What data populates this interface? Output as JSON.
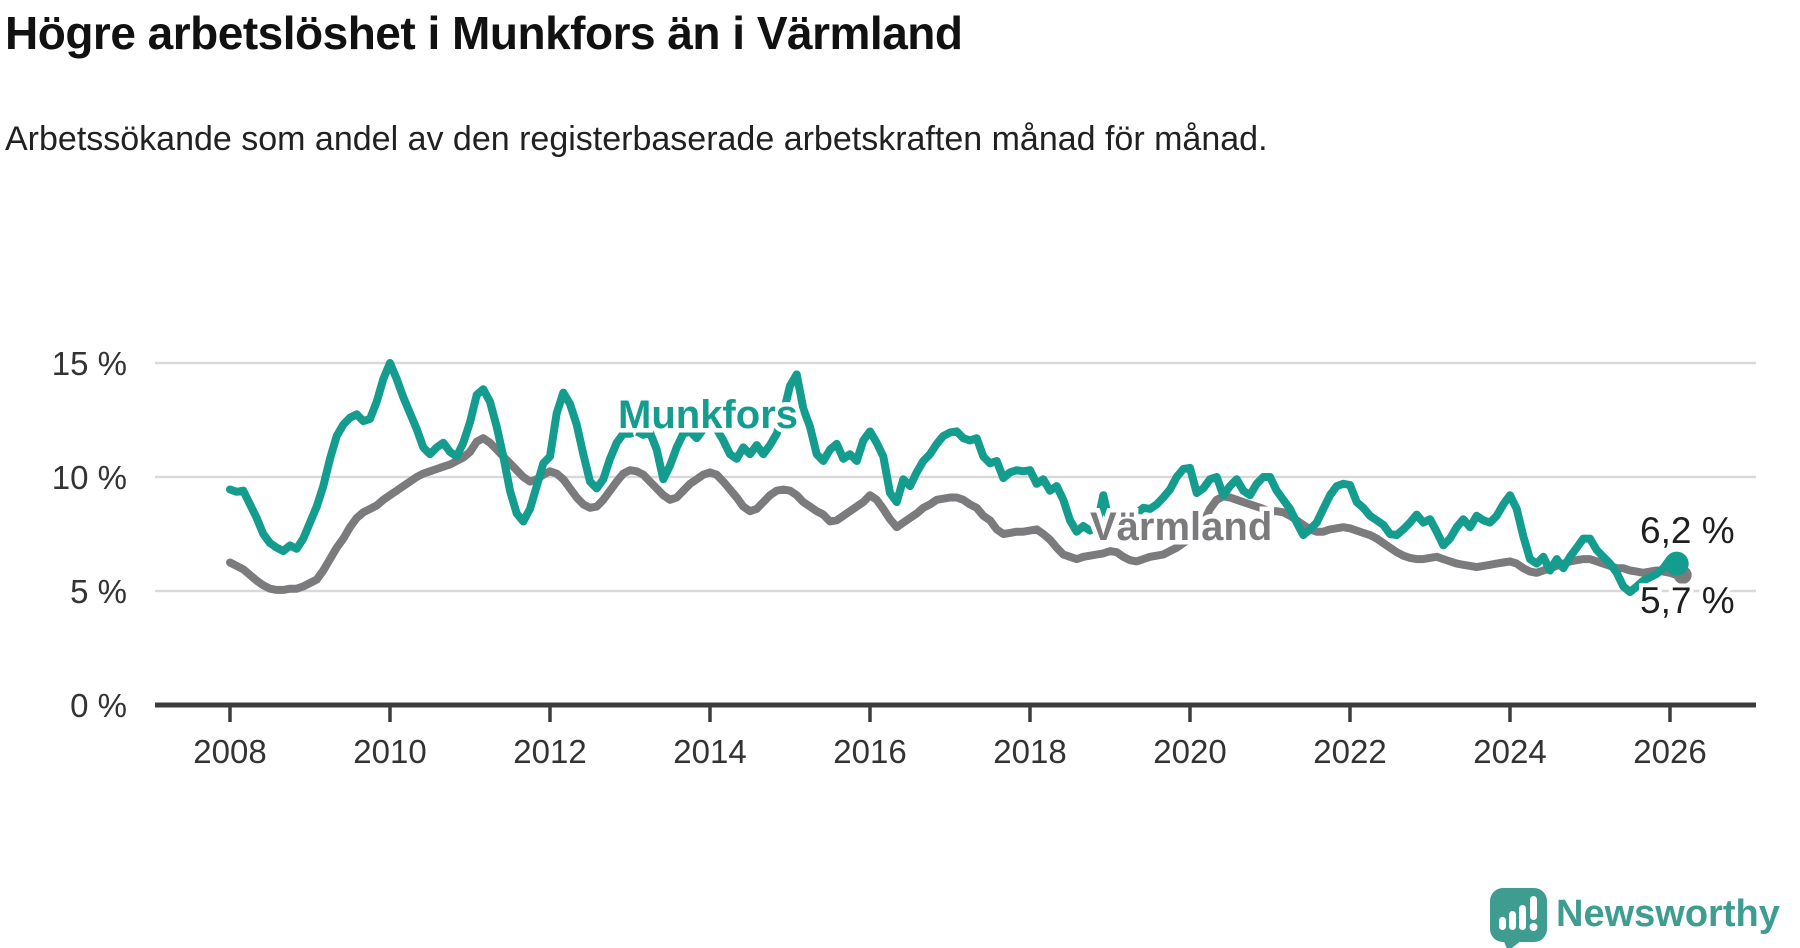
{
  "header": {
    "title": "Högre arbetslöshet i Munkfors än i Värmland",
    "subtitle": "Arbetssökande som andel av den registerbaserade arbetskraften månad för månad."
  },
  "chart_data": {
    "type": "line",
    "title": "Högre arbetslöshet i Munkfors än i Värmland",
    "subtitle": "Arbetssökande som andel av den registerbaserade arbetskraften månad för månad.",
    "unit": "%",
    "frequency": "monthly",
    "x_start": "2008-01",
    "x_end": "2026-02",
    "ylim": [
      0,
      17
    ],
    "grid": "horizontal",
    "x_ticks": [
      "2008",
      "2010",
      "2012",
      "2014",
      "2016",
      "2018",
      "2020",
      "2022",
      "2024",
      "2026"
    ],
    "y_ticks": [
      "15 %",
      "10 %",
      "5 %",
      "0 %"
    ],
    "colors": {
      "munkfors": "#149c8e",
      "varmland": "#7b7b7e",
      "gridline": "#d9d9d9",
      "axis": "#3c3c3c",
      "text": "#333333",
      "brand": "#3e9c91"
    },
    "series": [
      {
        "name": "Munkfors",
        "color": "#149c8e",
        "end_label": "6,2 %",
        "end_value": 6.2,
        "values": [
          9.45,
          9.35,
          9.4,
          8.8,
          8.2,
          7.5,
          7.1,
          6.9,
          6.75,
          7.0,
          6.85,
          7.3,
          8.0,
          8.7,
          9.6,
          10.8,
          11.8,
          12.3,
          12.6,
          12.75,
          12.45,
          12.55,
          13.3,
          14.3,
          15.0,
          14.3,
          13.5,
          12.8,
          12.1,
          11.3,
          11.0,
          11.3,
          11.5,
          11.1,
          10.9,
          11.5,
          12.4,
          13.6,
          13.85,
          13.3,
          12.2,
          10.9,
          9.4,
          8.4,
          8.05,
          8.6,
          9.6,
          10.6,
          10.9,
          12.8,
          13.7,
          13.2,
          12.3,
          11.0,
          9.8,
          9.5,
          9.9,
          10.8,
          11.5,
          11.9,
          11.9,
          12.0,
          11.85,
          11.95,
          11.2,
          9.9,
          10.5,
          11.3,
          11.9,
          12.0,
          11.7,
          12.1,
          12.3,
          12.1,
          11.6,
          11.0,
          10.8,
          11.3,
          11.0,
          11.4,
          11.0,
          11.4,
          11.9,
          12.8,
          14.0,
          14.5,
          13.0,
          12.2,
          11.0,
          10.7,
          11.2,
          11.45,
          10.8,
          11.0,
          10.7,
          11.6,
          12.0,
          11.5,
          10.9,
          9.3,
          8.9,
          9.9,
          9.6,
          10.2,
          10.7,
          11.0,
          11.45,
          11.8,
          11.95,
          12.0,
          11.7,
          11.6,
          11.7,
          10.9,
          10.6,
          10.7,
          9.95,
          10.2,
          10.3,
          10.25,
          10.3,
          9.7,
          9.9,
          9.4,
          9.6,
          9.0,
          8.1,
          7.6,
          7.85,
          7.65,
          7.8,
          9.2,
          7.9,
          8.0,
          8.1,
          8.2,
          8.4,
          8.65,
          8.6,
          8.8,
          9.1,
          9.45,
          10.0,
          10.35,
          10.4,
          9.3,
          9.5,
          9.9,
          10.0,
          9.2,
          9.6,
          9.9,
          9.4,
          9.2,
          9.7,
          10.0,
          10.0,
          9.4,
          9.0,
          8.6,
          8.0,
          7.45,
          7.7,
          8.0,
          8.6,
          9.2,
          9.6,
          9.7,
          9.65,
          8.9,
          8.65,
          8.3,
          8.1,
          7.9,
          7.5,
          7.45,
          7.7,
          8.0,
          8.35,
          8.0,
          8.15,
          7.6,
          7.0,
          7.3,
          7.8,
          8.15,
          7.8,
          8.3,
          8.1,
          8.0,
          8.3,
          8.8,
          9.2,
          8.6,
          7.4,
          6.4,
          6.2,
          6.5,
          5.9,
          6.4,
          6.0,
          6.5,
          6.9,
          7.3,
          7.3,
          6.8,
          6.5,
          6.2,
          5.8,
          5.2,
          4.95,
          5.2,
          5.45,
          5.6,
          5.75,
          6.0,
          6.4,
          6.2
        ]
      },
      {
        "name": "Värmland",
        "color": "#7b7b7e",
        "end_label": "5,7 %",
        "end_value": 5.7,
        "values": [
          6.25,
          6.1,
          5.95,
          5.7,
          5.45,
          5.25,
          5.1,
          5.05,
          5.05,
          5.1,
          5.1,
          5.2,
          5.35,
          5.5,
          5.9,
          6.4,
          6.9,
          7.3,
          7.8,
          8.2,
          8.45,
          8.6,
          8.75,
          9.0,
          9.2,
          9.4,
          9.6,
          9.8,
          10.0,
          10.15,
          10.25,
          10.35,
          10.45,
          10.55,
          10.7,
          10.85,
          11.1,
          11.55,
          11.7,
          11.5,
          11.2,
          10.9,
          10.6,
          10.3,
          10.0,
          9.8,
          9.9,
          10.1,
          10.25,
          10.15,
          9.9,
          9.5,
          9.1,
          8.8,
          8.65,
          8.7,
          9.0,
          9.4,
          9.8,
          10.15,
          10.3,
          10.25,
          10.1,
          9.8,
          9.5,
          9.2,
          9.0,
          9.1,
          9.4,
          9.7,
          9.9,
          10.1,
          10.2,
          10.1,
          9.8,
          9.45,
          9.1,
          8.7,
          8.5,
          8.6,
          8.9,
          9.2,
          9.4,
          9.45,
          9.4,
          9.2,
          8.9,
          8.7,
          8.5,
          8.35,
          8.05,
          8.1,
          8.3,
          8.5,
          8.7,
          8.9,
          9.2,
          9.0,
          8.6,
          8.15,
          7.8,
          8.0,
          8.2,
          8.4,
          8.65,
          8.8,
          9.0,
          9.05,
          9.1,
          9.1,
          9.0,
          8.8,
          8.65,
          8.3,
          8.1,
          7.7,
          7.5,
          7.55,
          7.6,
          7.6,
          7.65,
          7.7,
          7.5,
          7.25,
          6.9,
          6.6,
          6.5,
          6.4,
          6.5,
          6.55,
          6.6,
          6.65,
          6.75,
          6.7,
          6.5,
          6.35,
          6.3,
          6.4,
          6.5,
          6.55,
          6.6,
          6.75,
          6.9,
          7.1,
          7.3,
          7.5,
          8.0,
          8.6,
          9.0,
          9.15,
          9.1,
          9.0,
          8.9,
          8.8,
          8.7,
          8.6,
          8.5,
          8.5,
          8.45,
          8.3,
          8.1,
          7.9,
          7.7,
          7.6,
          7.6,
          7.7,
          7.75,
          7.8,
          7.75,
          7.65,
          7.55,
          7.45,
          7.3,
          7.1,
          6.9,
          6.7,
          6.55,
          6.45,
          6.4,
          6.4,
          6.45,
          6.5,
          6.4,
          6.3,
          6.2,
          6.15,
          6.1,
          6.05,
          6.1,
          6.15,
          6.2,
          6.25,
          6.3,
          6.2,
          6.0,
          5.85,
          5.8,
          5.9,
          6.0,
          6.1,
          6.2,
          6.3,
          6.35,
          6.4,
          6.4,
          6.3,
          6.2,
          6.1,
          6.0,
          6.0,
          5.9,
          5.85,
          5.8,
          5.85,
          5.9,
          5.85,
          5.8,
          5.7
        ]
      }
    ]
  },
  "footer": {
    "brand": "Newsworthy"
  }
}
